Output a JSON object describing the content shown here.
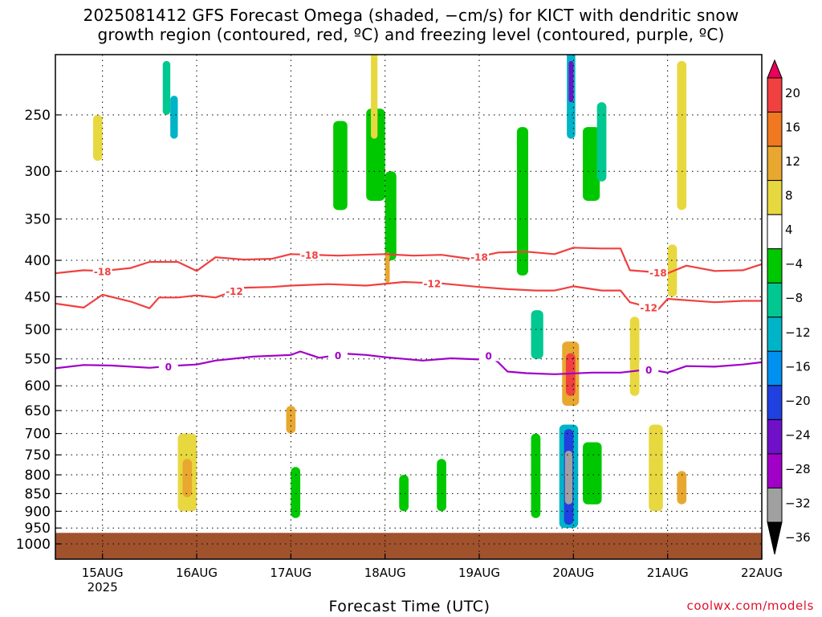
{
  "header": {
    "title_line1": "2025081412 GFS Forecast Omega (shaded, −cm/s) for KICT with dendritic snow",
    "title_line2": "growth region (contoured, red, ºC) and freezing level (contoured, purple, ºC)"
  },
  "footer": {
    "xaxis_title": "Forecast Time (UTC)",
    "credit": "coolwx.com/models"
  },
  "chart_data": {
    "type": "heatmap",
    "title": "2025081412 GFS Forecast Omega (shaded, −cm/s) for KICT with dendritic snow growth region (contoured, red, ºC) and freezing level (contoured, purple, ºC)",
    "xlabel": "Forecast Time (UTC)",
    "ylabel": "",
    "x_range": [
      14.5,
      22.0
    ],
    "x_ticks": [
      {
        "value": 15,
        "label": "15AUG",
        "sublabel": "2025"
      },
      {
        "value": 16,
        "label": "16AUG",
        "sublabel": ""
      },
      {
        "value": 17,
        "label": "17AUG",
        "sublabel": ""
      },
      {
        "value": 18,
        "label": "18AUG",
        "sublabel": ""
      },
      {
        "value": 19,
        "label": "19AUG",
        "sublabel": ""
      },
      {
        "value": 20,
        "label": "20AUG",
        "sublabel": ""
      },
      {
        "value": 21,
        "label": "21AUG",
        "sublabel": ""
      },
      {
        "value": 22,
        "label": "22AUG",
        "sublabel": ""
      }
    ],
    "y_axis": {
      "scale": "log-pressure",
      "range": [
        1050,
        200
      ],
      "ticks": [
        250,
        300,
        350,
        400,
        450,
        500,
        550,
        600,
        650,
        700,
        750,
        800,
        850,
        900,
        950,
        1000
      ]
    },
    "grid": true,
    "colorbar": {
      "labels": [
        "20",
        "16",
        "12",
        "8",
        "4",
        "−4",
        "−8",
        "−12",
        "−16",
        "−20",
        "−24",
        "−28",
        "−32",
        "−36"
      ],
      "colors": [
        "#e8005a",
        "#f04040",
        "#f07820",
        "#e8a830",
        "#e8d840",
        "#ffffff",
        "#00c800",
        "#00c890",
        "#00b4c8",
        "#0090f0",
        "#2040e0",
        "#7010c8",
        "#a000c8",
        "#a0a0a0",
        "#000000"
      ]
    },
    "ground": {
      "color": "#a0522d",
      "pressure_top": 965
    },
    "contours": [
      {
        "name": "dendritic -18C",
        "color": "#f04040",
        "label": "-18",
        "points": [
          [
            14.5,
            417
          ],
          [
            14.8,
            413
          ],
          [
            15.0,
            414
          ],
          [
            15.3,
            410
          ],
          [
            15.5,
            402
          ],
          [
            15.8,
            402
          ],
          [
            16.0,
            414
          ],
          [
            16.2,
            396
          ],
          [
            16.5,
            399
          ],
          [
            16.8,
            398
          ],
          [
            17.0,
            392
          ],
          [
            17.5,
            394
          ],
          [
            18.0,
            392
          ],
          [
            18.3,
            394
          ],
          [
            18.6,
            393
          ],
          [
            18.9,
            398
          ],
          [
            19.2,
            390
          ],
          [
            19.5,
            389
          ],
          [
            19.8,
            392
          ],
          [
            20.0,
            384
          ],
          [
            20.3,
            385
          ],
          [
            20.5,
            385
          ],
          [
            20.6,
            413
          ],
          [
            21.0,
            417
          ],
          [
            21.2,
            407
          ],
          [
            21.5,
            414
          ],
          [
            21.8,
            413
          ],
          [
            22.0,
            405
          ]
        ],
        "label_at": [
          15.0,
          17.2,
          19.0,
          20.9
        ]
      },
      {
        "name": "dendritic -12C",
        "color": "#f04040",
        "label": "-12",
        "points": [
          [
            14.5,
            460
          ],
          [
            14.8,
            466
          ],
          [
            15.0,
            447
          ],
          [
            15.3,
            457
          ],
          [
            15.5,
            467
          ],
          [
            15.6,
            451
          ],
          [
            15.8,
            451
          ],
          [
            16.0,
            448
          ],
          [
            16.2,
            451
          ],
          [
            16.5,
            437
          ],
          [
            16.8,
            436
          ],
          [
            17.0,
            434
          ],
          [
            17.4,
            432
          ],
          [
            17.8,
            434
          ],
          [
            18.2,
            429
          ],
          [
            18.6,
            431
          ],
          [
            19.0,
            436
          ],
          [
            19.3,
            439
          ],
          [
            19.6,
            441
          ],
          [
            19.8,
            441
          ],
          [
            20.0,
            435
          ],
          [
            20.3,
            441
          ],
          [
            20.5,
            441
          ],
          [
            20.6,
            458
          ],
          [
            20.9,
            469
          ],
          [
            21.0,
            453
          ],
          [
            21.5,
            458
          ],
          [
            21.8,
            456
          ],
          [
            22.0,
            456
          ]
        ],
        "label_at": [
          16.4,
          18.5,
          20.8
        ]
      },
      {
        "name": "freezing level 0C",
        "color": "#a000c8",
        "label": "0",
        "points": [
          [
            14.5,
            567
          ],
          [
            14.8,
            561
          ],
          [
            15.1,
            562
          ],
          [
            15.5,
            566
          ],
          [
            15.8,
            562
          ],
          [
            16.0,
            560
          ],
          [
            16.2,
            553
          ],
          [
            16.6,
            546
          ],
          [
            17.0,
            543
          ],
          [
            17.1,
            537
          ],
          [
            17.3,
            548
          ],
          [
            17.6,
            541
          ],
          [
            17.8,
            543
          ],
          [
            18.0,
            547
          ],
          [
            18.2,
            550
          ],
          [
            18.4,
            553
          ],
          [
            18.7,
            549
          ],
          [
            19.0,
            551
          ],
          [
            19.1,
            544
          ],
          [
            19.2,
            556
          ],
          [
            19.3,
            573
          ],
          [
            19.5,
            576
          ],
          [
            19.8,
            578
          ],
          [
            20.2,
            575
          ],
          [
            20.5,
            575
          ],
          [
            20.8,
            569
          ],
          [
            21.0,
            575
          ],
          [
            21.2,
            563
          ],
          [
            21.5,
            564
          ],
          [
            21.8,
            560
          ],
          [
            22.0,
            556
          ]
        ],
        "label_at": [
          15.7,
          17.5,
          19.1,
          20.8
        ]
      }
    ],
    "omega_cells": [
      {
        "t0": 15.64,
        "t1": 15.72,
        "p0": 210,
        "p1": 250,
        "value": -10
      },
      {
        "t0": 15.72,
        "t1": 15.8,
        "p0": 235,
        "p1": 270,
        "value": -14
      },
      {
        "t0": 17.45,
        "t1": 17.6,
        "p0": 255,
        "p1": 340,
        "value": -8
      },
      {
        "t0": 17.8,
        "t1": 18.0,
        "p0": 245,
        "p1": 330,
        "value": -8
      },
      {
        "t0": 18.0,
        "t1": 18.12,
        "p0": 300,
        "p1": 400,
        "value": -8
      },
      {
        "t0": 19.4,
        "t1": 19.52,
        "p0": 260,
        "p1": 420,
        "value": -8
      },
      {
        "t0": 19.55,
        "t1": 19.68,
        "p0": 470,
        "p1": 550,
        "value": -10
      },
      {
        "t0": 19.93,
        "t1": 20.02,
        "p0": 200,
        "p1": 270,
        "value": -16
      },
      {
        "t0": 19.95,
        "t1": 20.0,
        "p0": 210,
        "p1": 240,
        "value": -26
      },
      {
        "t0": 20.1,
        "t1": 20.28,
        "p0": 260,
        "p1": 330,
        "value": -6
      },
      {
        "t0": 20.25,
        "t1": 20.35,
        "p0": 240,
        "p1": 310,
        "value": -10
      },
      {
        "t0": 18.55,
        "t1": 18.65,
        "p0": 760,
        "p1": 900,
        "value": -6
      },
      {
        "t0": 19.55,
        "t1": 19.65,
        "p0": 700,
        "p1": 920,
        "value": -8
      },
      {
        "t0": 19.85,
        "t1": 20.05,
        "p0": 680,
        "p1": 950,
        "value": -14
      },
      {
        "t0": 19.9,
        "t1": 20.0,
        "p0": 690,
        "p1": 940,
        "value": -24
      },
      {
        "t0": 19.91,
        "t1": 19.99,
        "p0": 740,
        "p1": 880,
        "value": -36
      },
      {
        "t0": 20.1,
        "t1": 20.3,
        "p0": 720,
        "p1": 880,
        "value": -8
      },
      {
        "t0": 17.0,
        "t1": 17.1,
        "p0": 780,
        "p1": 920,
        "value": -6
      },
      {
        "t0": 18.15,
        "t1": 18.25,
        "p0": 800,
        "p1": 900,
        "value": -6
      },
      {
        "t0": 15.8,
        "t1": 16.0,
        "p0": 700,
        "p1": 900,
        "value": 6
      },
      {
        "t0": 15.85,
        "t1": 15.95,
        "p0": 760,
        "p1": 860,
        "value": 10
      },
      {
        "t0": 19.88,
        "t1": 20.06,
        "p0": 520,
        "p1": 640,
        "value": 10
      },
      {
        "t0": 19.92,
        "t1": 20.02,
        "p0": 540,
        "p1": 620,
        "value": 18
      },
      {
        "t0": 20.8,
        "t1": 20.95,
        "p0": 680,
        "p1": 900,
        "value": 6
      },
      {
        "t0": 21.1,
        "t1": 21.2,
        "p0": 210,
        "p1": 340,
        "value": 6
      },
      {
        "t0": 21.1,
        "t1": 21.2,
        "p0": 790,
        "p1": 880,
        "value": 8
      },
      {
        "t0": 14.9,
        "t1": 15.0,
        "p0": 250,
        "p1": 290,
        "value": 5
      },
      {
        "t0": 16.95,
        "t1": 17.05,
        "p0": 640,
        "p1": 700,
        "value": 8
      },
      {
        "t0": 18.0,
        "t1": 18.05,
        "p0": 390,
        "p1": 430,
        "value": 8
      },
      {
        "t0": 17.85,
        "t1": 17.92,
        "p0": 200,
        "p1": 270,
        "value": 5
      },
      {
        "t0": 20.6,
        "t1": 20.7,
        "p0": 480,
        "p1": 620,
        "value": 5
      },
      {
        "t0": 21.0,
        "t1": 21.1,
        "p0": 380,
        "p1": 450,
        "value": 5
      }
    ]
  }
}
